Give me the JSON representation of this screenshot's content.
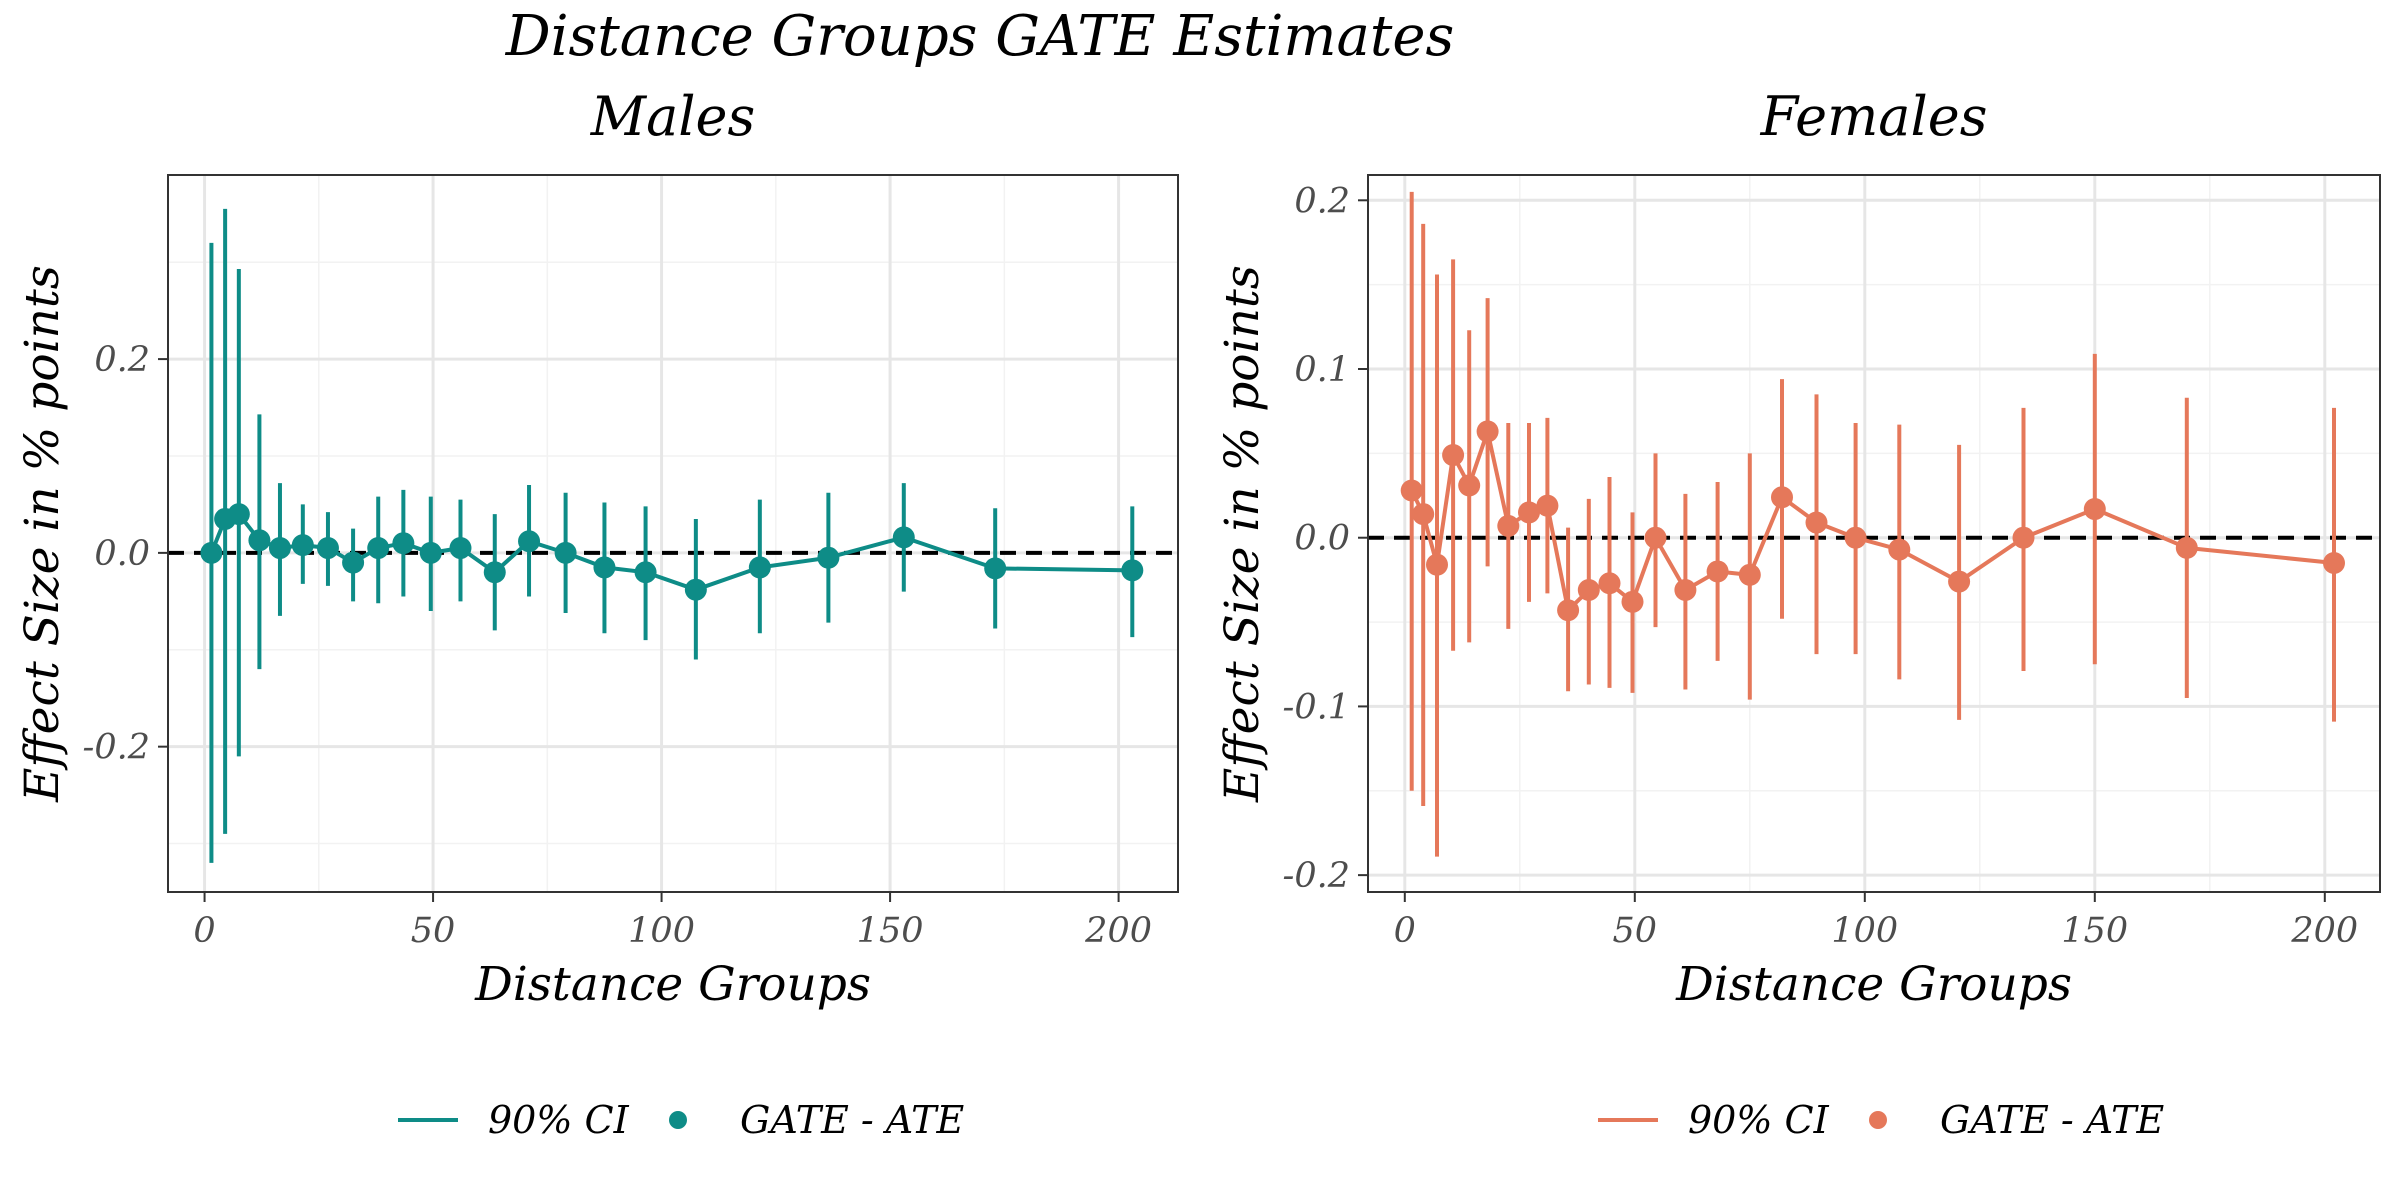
{
  "title": "Distance Groups GATE Estimates",
  "colors": {
    "males": "#0e8c87",
    "females": "#e5785a"
  },
  "chart_data": [
    {
      "type": "line",
      "panel": "Males",
      "title": "Males",
      "xlabel": "Distance Groups",
      "ylabel": "Effect Size in % points",
      "xlim": [
        -8,
        213
      ],
      "ylim": [
        -0.35,
        0.39
      ],
      "xticks": [
        0,
        50,
        100,
        150,
        200
      ],
      "xtick_labels": [
        "0",
        "50",
        "100",
        "150",
        "200"
      ],
      "yticks": [
        -0.2,
        0.0,
        0.2
      ],
      "ytick_labels": [
        "-0.2",
        "0.0",
        "0.2"
      ],
      "reference_line": 0,
      "series": [
        {
          "name": "GATE - ATE",
          "x": [
            1.5,
            4.5,
            7.5,
            12,
            16.5,
            21.5,
            27,
            32.5,
            38,
            43.5,
            49.5,
            56,
            63.5,
            71,
            79,
            87.5,
            96.5,
            107.5,
            121.5,
            136.5,
            153,
            173,
            203
          ],
          "y": [
            0.0,
            0.035,
            0.04,
            0.013,
            0.005,
            0.008,
            0.005,
            -0.01,
            0.005,
            0.01,
            0.0,
            0.005,
            -0.02,
            0.012,
            0.0,
            -0.015,
            -0.02,
            -0.038,
            -0.015,
            -0.005,
            0.016,
            -0.016,
            -0.018
          ],
          "ci_low": [
            -0.32,
            -0.29,
            -0.21,
            -0.12,
            -0.065,
            -0.032,
            -0.034,
            -0.05,
            -0.052,
            -0.045,
            -0.06,
            -0.05,
            -0.08,
            -0.045,
            -0.062,
            -0.083,
            -0.09,
            -0.11,
            -0.083,
            -0.072,
            -0.04,
            -0.078,
            -0.087
          ],
          "ci_high": [
            0.32,
            0.355,
            0.293,
            0.143,
            0.072,
            0.05,
            0.042,
            0.025,
            0.058,
            0.065,
            0.058,
            0.055,
            0.04,
            0.07,
            0.062,
            0.052,
            0.048,
            0.035,
            0.055,
            0.062,
            0.072,
            0.046,
            0.048
          ]
        }
      ],
      "legend": [
        {
          "label": "90% CI",
          "kind": "line"
        },
        {
          "label": "GATE - ATE",
          "kind": "point"
        }
      ]
    },
    {
      "type": "line",
      "panel": "Females",
      "title": "Females",
      "xlabel": "Distance Groups",
      "ylabel": "Effect Size in % points",
      "xlim": [
        -8,
        212
      ],
      "ylim": [
        -0.21,
        0.215
      ],
      "xticks": [
        0,
        50,
        100,
        150,
        200
      ],
      "xtick_labels": [
        "0",
        "50",
        "100",
        "150",
        "200"
      ],
      "yticks": [
        -0.2,
        -0.1,
        0.0,
        0.1,
        0.2
      ],
      "ytick_labels": [
        "-0.2",
        "-0.1",
        "0.0",
        "0.1",
        "0.2"
      ],
      "reference_line": 0,
      "series": [
        {
          "name": "GATE - ATE",
          "x": [
            1.5,
            4,
            7,
            10.5,
            14,
            18,
            22.5,
            27,
            31,
            35.5,
            40,
            44.5,
            49.5,
            54.5,
            61,
            68,
            75,
            82,
            89.5,
            98,
            107.5,
            120.5,
            134.5,
            150,
            170,
            202
          ],
          "y": [
            0.028,
            0.014,
            -0.016,
            0.049,
            0.031,
            0.063,
            0.007,
            0.015,
            0.019,
            -0.043,
            -0.031,
            -0.027,
            -0.038,
            0.0,
            -0.031,
            -0.02,
            -0.022,
            0.024,
            0.009,
            0.0,
            -0.007,
            -0.026,
            0.0,
            0.017,
            -0.006,
            -0.015
          ],
          "ci_low": [
            -0.15,
            -0.159,
            -0.189,
            -0.067,
            -0.062,
            -0.017,
            -0.054,
            -0.038,
            -0.033,
            -0.091,
            -0.087,
            -0.089,
            -0.092,
            -0.053,
            -0.09,
            -0.073,
            -0.096,
            -0.048,
            -0.069,
            -0.069,
            -0.084,
            -0.108,
            -0.079,
            -0.075,
            -0.095,
            -0.109
          ],
          "ci_high": [
            0.205,
            0.186,
            0.156,
            0.165,
            0.123,
            0.142,
            0.068,
            0.068,
            0.071,
            0.006,
            0.023,
            0.036,
            0.015,
            0.05,
            0.026,
            0.033,
            0.05,
            0.094,
            0.085,
            0.068,
            0.067,
            0.055,
            0.077,
            0.109,
            0.083,
            0.077
          ]
        }
      ],
      "legend": [
        {
          "label": "90% CI",
          "kind": "line"
        },
        {
          "label": "GATE - ATE",
          "kind": "point"
        }
      ]
    }
  ]
}
